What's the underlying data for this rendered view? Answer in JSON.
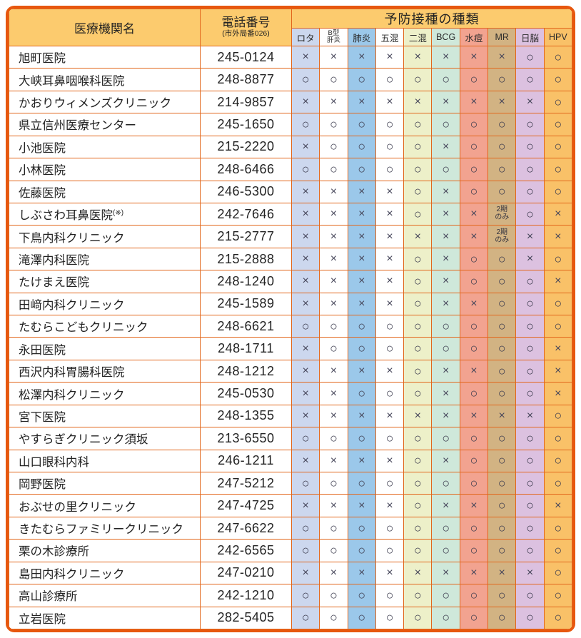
{
  "table": {
    "institution_header": "医療機関名",
    "phone_header": "電話番号",
    "phone_note": "(市外局番026)",
    "vaccine_group_header": "予防接種の種類",
    "legend": {
      "available": "○",
      "unavailable": "×",
      "second_period_only": "2期のみ"
    },
    "colors": {
      "frame_border": "#e7570e",
      "grid_line": "#e2671c",
      "header_bg": "#fccb6e",
      "mark_text": "#3d3d4f"
    },
    "vaccine_columns": [
      {
        "label": "ロタ",
        "bg": "#ccd7ee"
      },
      {
        "label": "B型肝炎",
        "label_lines": [
          "B型",
          "肝炎"
        ],
        "bg": "#ffffff"
      },
      {
        "label": "肺炎",
        "bg": "#9bc8ea"
      },
      {
        "label": "五混",
        "bg": "#ffffff"
      },
      {
        "label": "二混",
        "bg": "#edf0c9"
      },
      {
        "label": "BCG",
        "bg": "#cfe8da"
      },
      {
        "label": "水痘",
        "bg": "#f2a390"
      },
      {
        "label": "MR",
        "bg": "#d2b383"
      },
      {
        "label": "日脳",
        "bg": "#dcc1e0"
      },
      {
        "label": "HPV",
        "bg": "#f9c168"
      }
    ],
    "rows": [
      {
        "name": "旭町医院",
        "phone": "245-0124",
        "marks": [
          "×",
          "×",
          "×",
          "×",
          "×",
          "×",
          "×",
          "×",
          "○",
          "○"
        ]
      },
      {
        "name": "大峡耳鼻咽喉科医院",
        "phone": "248-8877",
        "marks": [
          "○",
          "○",
          "○",
          "○",
          "○",
          "○",
          "○",
          "○",
          "○",
          "○"
        ]
      },
      {
        "name": "かおりウィメンズクリニック",
        "phone": "214-9857",
        "marks": [
          "×",
          "×",
          "×",
          "×",
          "×",
          "×",
          "×",
          "×",
          "×",
          "○"
        ]
      },
      {
        "name": "県立信州医療センター",
        "phone": "245-1650",
        "marks": [
          "○",
          "○",
          "○",
          "○",
          "○",
          "○",
          "○",
          "○",
          "○",
          "○"
        ]
      },
      {
        "name": "小池医院",
        "phone": "215-2220",
        "marks": [
          "×",
          "○",
          "○",
          "○",
          "○",
          "×",
          "○",
          "○",
          "○",
          "○"
        ]
      },
      {
        "name": "小林医院",
        "phone": "248-6466",
        "marks": [
          "○",
          "○",
          "○",
          "○",
          "○",
          "○",
          "○",
          "○",
          "○",
          "○"
        ]
      },
      {
        "name": "佐藤医院",
        "phone": "246-5300",
        "marks": [
          "×",
          "×",
          "×",
          "×",
          "○",
          "×",
          "○",
          "○",
          "○",
          "○"
        ]
      },
      {
        "name": "しぶさわ耳鼻医院",
        "note": "(※)",
        "phone": "242-7646",
        "marks": [
          "×",
          "×",
          "×",
          "×",
          "○",
          "×",
          "×",
          "2期のみ",
          "○",
          "×"
        ]
      },
      {
        "name": "下鳥内科クリニック",
        "phone": "215-2777",
        "marks": [
          "×",
          "×",
          "×",
          "×",
          "×",
          "×",
          "×",
          "2期のみ",
          "×",
          "×"
        ]
      },
      {
        "name": "滝澤内科医院",
        "phone": "215-2888",
        "marks": [
          "×",
          "×",
          "×",
          "×",
          "○",
          "×",
          "○",
          "○",
          "×",
          "○"
        ]
      },
      {
        "name": "たけまえ医院",
        "phone": "248-1240",
        "marks": [
          "×",
          "×",
          "×",
          "×",
          "○",
          "×",
          "○",
          "○",
          "○",
          "×"
        ]
      },
      {
        "name": "田﨑内科クリニック",
        "phone": "245-1589",
        "marks": [
          "×",
          "×",
          "×",
          "×",
          "○",
          "×",
          "×",
          "○",
          "○",
          "○"
        ]
      },
      {
        "name": "たむらこどもクリニック",
        "phone": "248-6621",
        "marks": [
          "○",
          "○",
          "○",
          "○",
          "○",
          "○",
          "○",
          "○",
          "○",
          "○"
        ]
      },
      {
        "name": "永田医院",
        "phone": "248-1711",
        "marks": [
          "×",
          "○",
          "○",
          "○",
          "○",
          "○",
          "○",
          "○",
          "○",
          "×"
        ]
      },
      {
        "name": "西沢内科胃腸科医院",
        "phone": "248-1212",
        "marks": [
          "×",
          "×",
          "×",
          "×",
          "○",
          "×",
          "×",
          "○",
          "○",
          "×"
        ]
      },
      {
        "name": "松澤内科クリニック",
        "phone": "245-0530",
        "marks": [
          "×",
          "×",
          "○",
          "○",
          "○",
          "×",
          "○",
          "○",
          "○",
          "×"
        ]
      },
      {
        "name": "宮下医院",
        "phone": "248-1355",
        "marks": [
          "×",
          "×",
          "×",
          "×",
          "×",
          "×",
          "×",
          "×",
          "×",
          "○"
        ]
      },
      {
        "name": "やすらぎクリニック須坂",
        "phone": "213-6550",
        "marks": [
          "○",
          "○",
          "○",
          "○",
          "○",
          "○",
          "○",
          "○",
          "○",
          "○"
        ]
      },
      {
        "name": "山口眼科内科",
        "phone": "246-1211",
        "marks": [
          "×",
          "×",
          "×",
          "×",
          "○",
          "×",
          "○",
          "○",
          "○",
          "○"
        ]
      },
      {
        "name": "岡野医院",
        "phone": "247-5212",
        "marks": [
          "○",
          "○",
          "○",
          "○",
          "○",
          "○",
          "○",
          "○",
          "○",
          "○"
        ]
      },
      {
        "name": "おぶせの里クリニック",
        "phone": "247-4725",
        "marks": [
          "×",
          "×",
          "×",
          "×",
          "○",
          "×",
          "×",
          "○",
          "○",
          "×"
        ]
      },
      {
        "name": "きたむらファミリークリニック",
        "phone": "247-6622",
        "marks": [
          "○",
          "○",
          "○",
          "○",
          "○",
          "○",
          "○",
          "○",
          "○",
          "○"
        ]
      },
      {
        "name": "栗の木診療所",
        "phone": "242-6565",
        "marks": [
          "○",
          "○",
          "○",
          "○",
          "○",
          "○",
          "○",
          "○",
          "○",
          "○"
        ]
      },
      {
        "name": "島田内科クリニック",
        "phone": "247-0210",
        "marks": [
          "×",
          "×",
          "×",
          "×",
          "×",
          "×",
          "×",
          "×",
          "×",
          "○"
        ]
      },
      {
        "name": "高山診療所",
        "phone": "242-1210",
        "marks": [
          "○",
          "○",
          "○",
          "○",
          "○",
          "○",
          "○",
          "○",
          "○",
          "○"
        ]
      },
      {
        "name": "立岩医院",
        "phone": "282-5405",
        "marks": [
          "○",
          "○",
          "○",
          "○",
          "○",
          "○",
          "○",
          "○",
          "○",
          "○"
        ]
      }
    ]
  }
}
